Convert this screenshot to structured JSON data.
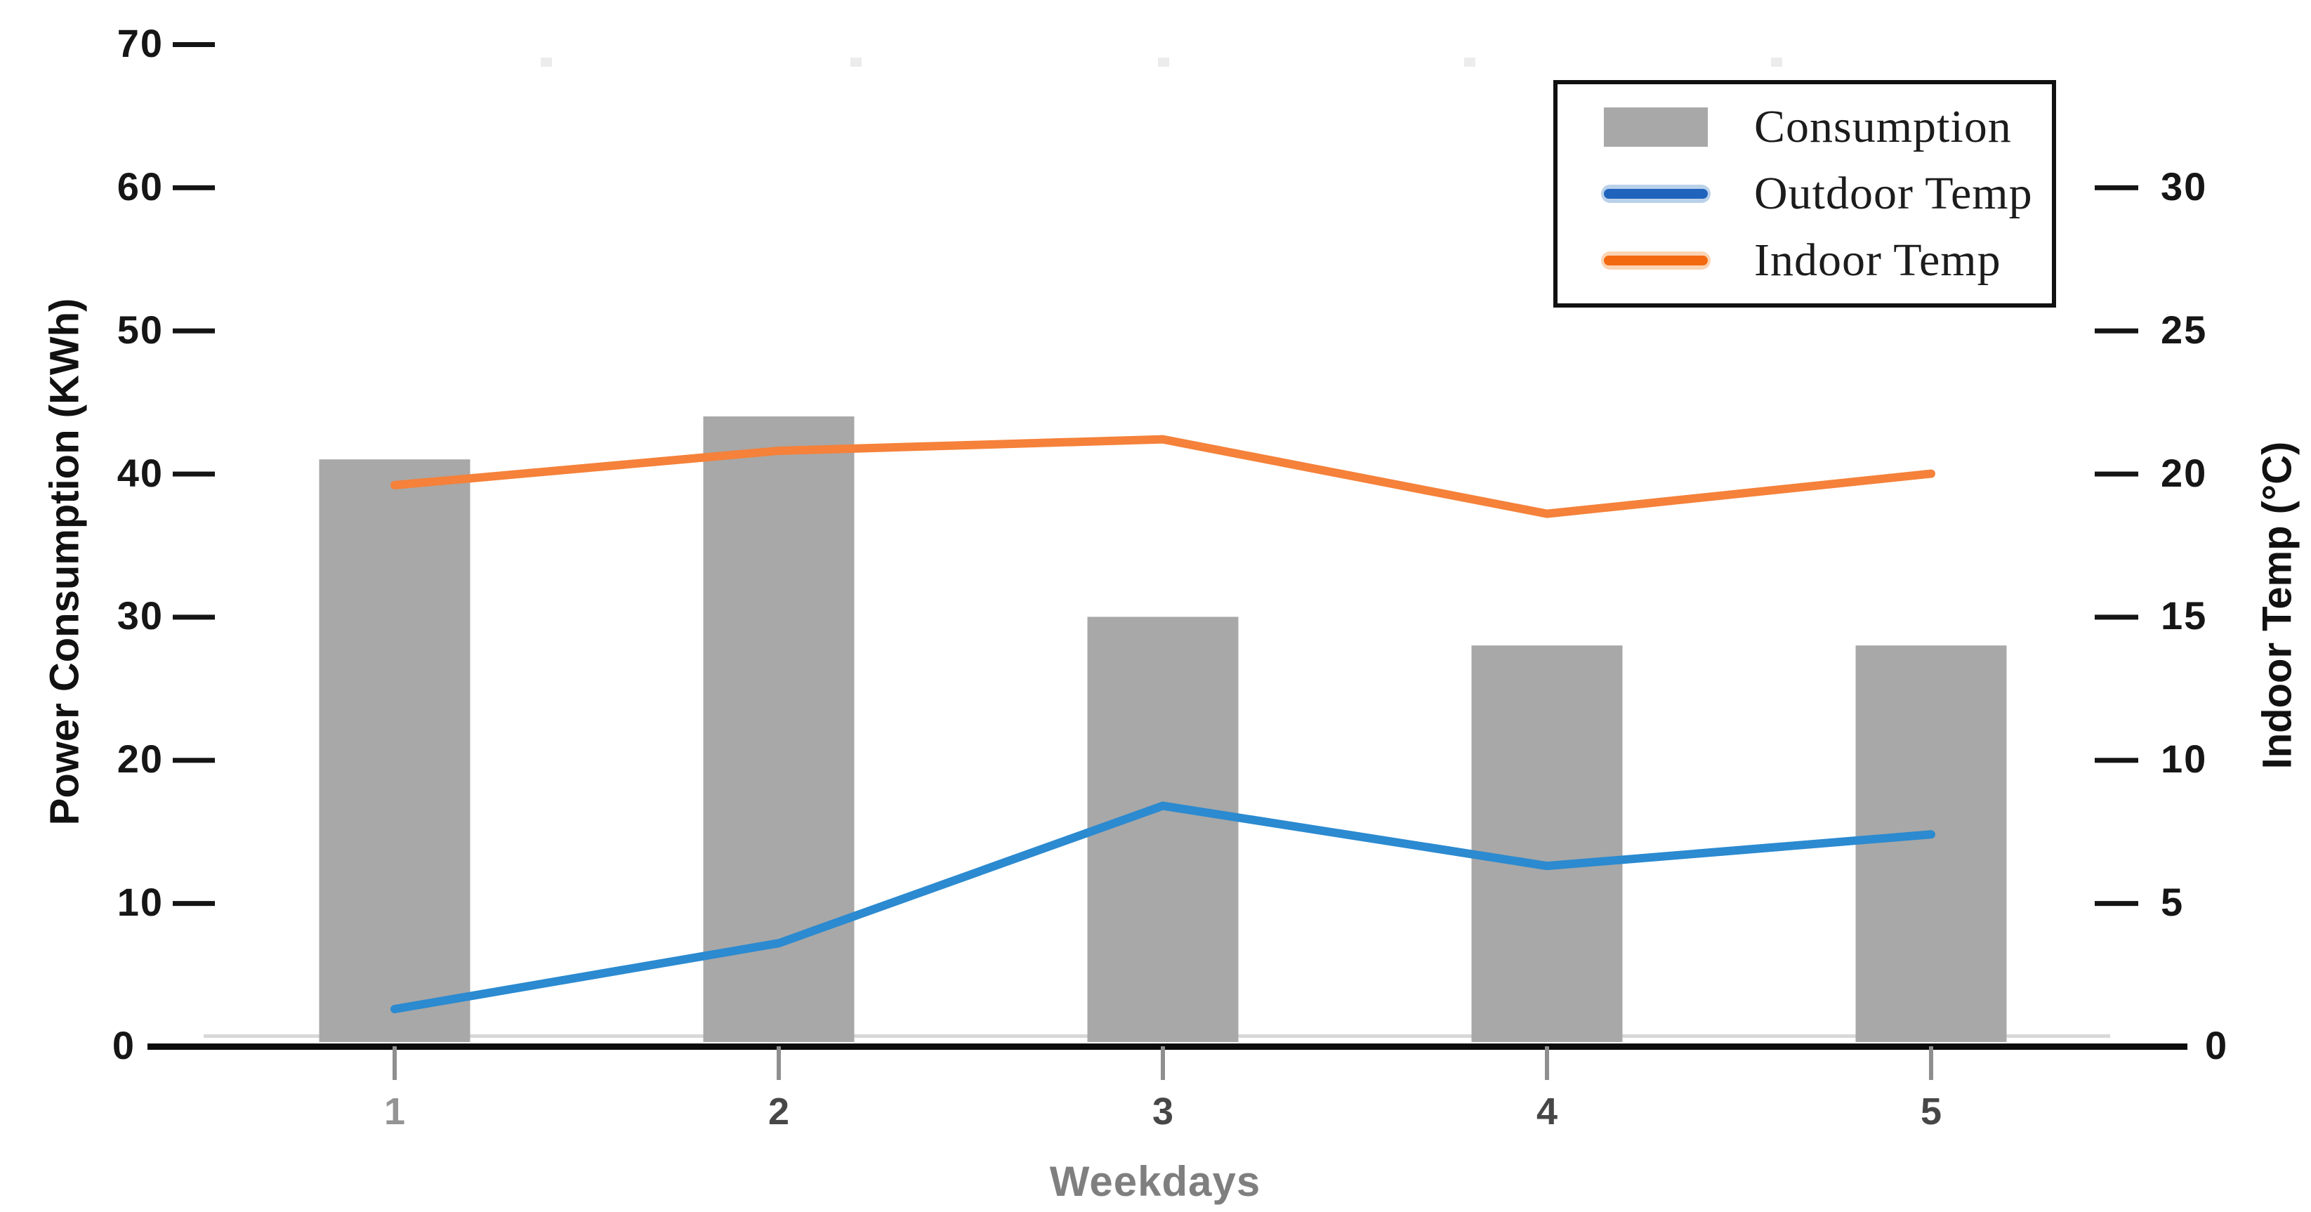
{
  "chart_data": {
    "type": "bar",
    "subtype": "combo-bar-line-dual-axis",
    "title": "",
    "categories": [
      "1",
      "2",
      "3",
      "4",
      "5"
    ],
    "series": [
      {
        "name": "Consumption",
        "type": "bar",
        "axis": "left",
        "unit": "KWh",
        "color": "#a8a8a8",
        "values": [
          41,
          44,
          30,
          28,
          28
        ]
      },
      {
        "name": "Outdoor Temp",
        "type": "line",
        "axis": "right",
        "unit": "°C",
        "color": "#2b8ad0",
        "values": [
          1.3,
          3.6,
          8.4,
          6.3,
          7.4
        ]
      },
      {
        "name": "Indoor Temp",
        "type": "line",
        "axis": "right",
        "unit": "°C",
        "color": "#f5813a",
        "values": [
          19.6,
          20.8,
          21.2,
          18.6,
          20.0
        ]
      }
    ],
    "xlabel": "Weekdays",
    "left_axis": {
      "label": "Power Consumption (KWh)",
      "ticks": [
        0,
        10,
        20,
        30,
        40,
        50,
        60,
        70
      ],
      "range": [
        0,
        73
      ]
    },
    "right_axis": {
      "label": "Indoor Temp (°C)",
      "ticks": [
        0,
        5,
        10,
        15,
        20,
        25,
        30
      ],
      "range": [
        0,
        36.5
      ]
    },
    "legend": {
      "position": "top-right",
      "items": [
        "Consumption",
        "Outdoor Temp",
        "Indoor Temp"
      ]
    },
    "grid": false
  }
}
